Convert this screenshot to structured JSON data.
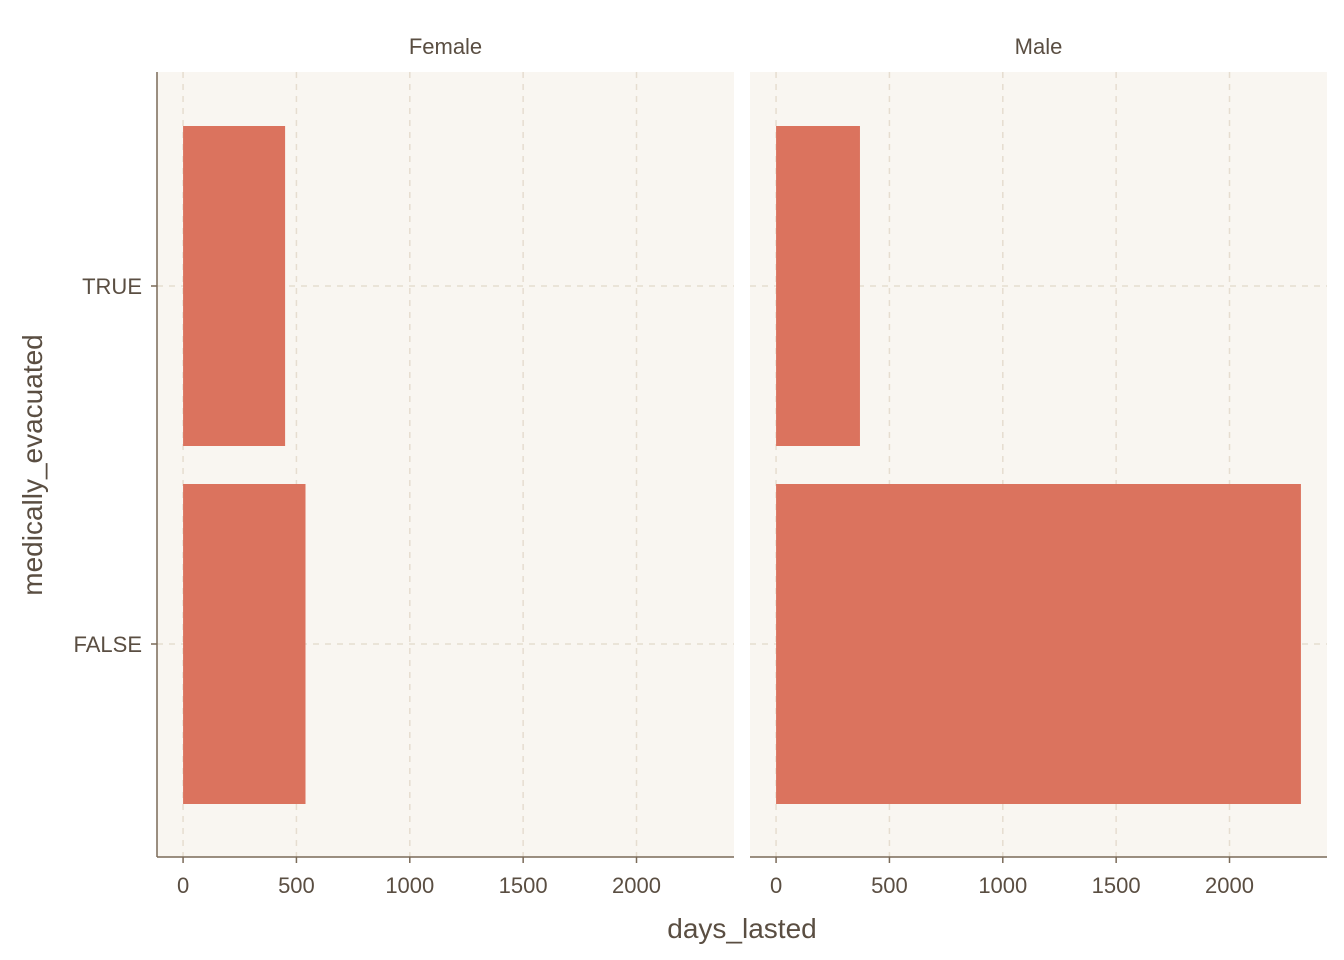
{
  "colors": {
    "panel_bg": "#f9f6f1",
    "bar": "#db735e",
    "text": "#5a4e42"
  },
  "chart_data": {
    "type": "bar",
    "orientation": "horizontal",
    "xlabel": "days_lasted",
    "ylabel": "medically_evacuated",
    "categories": [
      "FALSE",
      "TRUE"
    ],
    "xlim": [
      -115,
      2430
    ],
    "xticks": [
      0,
      500,
      1000,
      1500,
      2000
    ],
    "xtick_labels": [
      "0",
      "500",
      "1000",
      "1500",
      "2000"
    ],
    "grid": true,
    "facets": [
      {
        "name": "Female",
        "values": {
          "FALSE": 540,
          "TRUE": 450
        }
      },
      {
        "name": "Male",
        "values": {
          "FALSE": 2315,
          "TRUE": 370
        }
      }
    ]
  }
}
